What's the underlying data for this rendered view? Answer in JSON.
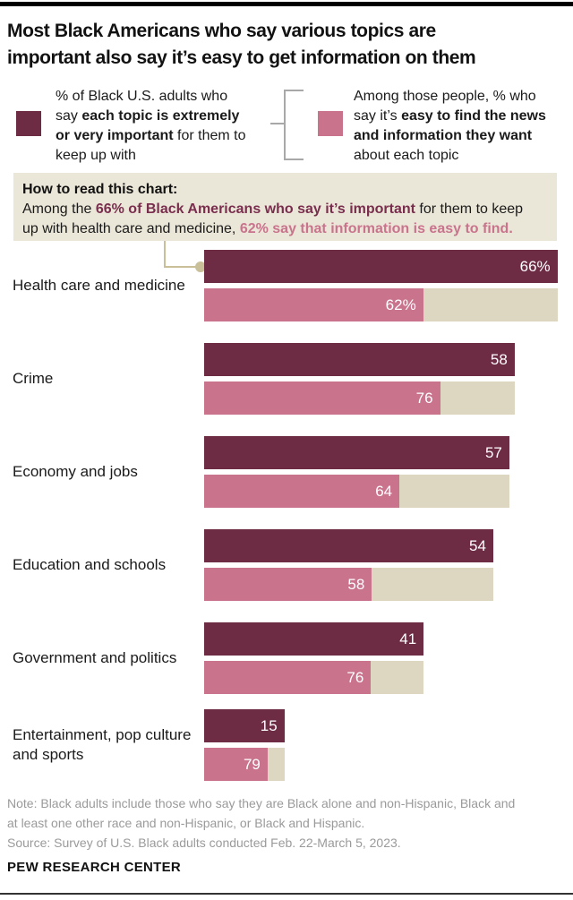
{
  "header": {
    "title_line1": "Most Black Americans who say various topics are",
    "title_line2": "important also say it’s easy to get information on them"
  },
  "legend": {
    "left": {
      "swatch": "maroon-square",
      "segments": [
        {
          "t": "% of Black U.S. adults who",
          "br": true
        },
        {
          "t": "say "
        },
        {
          "t": "each topic is extremely",
          "b": true,
          "br": true
        },
        {
          "t": "or very important",
          "b": true
        },
        {
          "t": " for them to",
          "br": true
        },
        {
          "t": "keep up with"
        }
      ]
    },
    "right": {
      "swatch": "pink-square",
      "segments": [
        {
          "t": "Among those people, % who",
          "br": true
        },
        {
          "t": "say it’s "
        },
        {
          "t": "easy to find the news",
          "b": true,
          "br": true
        },
        {
          "t": "and information they want",
          "b": true,
          "br": true
        },
        {
          "t": "about each topic"
        }
      ]
    }
  },
  "how_to_read": {
    "heading": "How to read this chart:",
    "segments": [
      {
        "t": "Among the "
      },
      {
        "t": "66% of Black Americans who say it’s important",
        "b": true,
        "c": "maroon_text"
      },
      {
        "t": " for them to keep",
        "br": true
      },
      {
        "t": "up with health care and medicine, "
      },
      {
        "t": "62% say that information is easy to find.",
        "b": true,
        "c": "pink_text"
      }
    ]
  },
  "chart_data": {
    "type": "bar",
    "orientation": "horizontal",
    "unit": "percent",
    "xlim": [
      0,
      100
    ],
    "grid": false,
    "legend_position": "top",
    "categories": [
      "Health care and medicine",
      "Crime",
      "Economy and jobs",
      "Education and schools",
      "Government and politics",
      "Entertainment, pop culture and sports"
    ],
    "series": [
      {
        "name": "% of Black U.S. adults who say each topic is extremely or very important for them to keep up with",
        "color_key": "maroon",
        "values": [
          66,
          58,
          57,
          54,
          41,
          15
        ],
        "labels": [
          "66%",
          "58",
          "57",
          "54",
          "41",
          "15"
        ]
      },
      {
        "name": "Among those people, % who say it’s easy to find the news and information they want about each topic",
        "color_key": "pink",
        "values": [
          62,
          76,
          64,
          58,
          76,
          79
        ],
        "labels": [
          "62%",
          "76",
          "64",
          "58",
          "76",
          "79"
        ],
        "note": "shown as filled share of a beige track equal in length to the importance bar"
      }
    ]
  },
  "footer": {
    "note_lines": [
      "Note: Black adults include those who say they are Black alone and non-Hispanic, Black and",
      "at least one other race and non-Hispanic, or Black and Hispanic."
    ],
    "source": "Source: Survey of U.S. Black adults conducted Feb. 22-March 5, 2023.",
    "brand": "PEW RESEARCH CENTER"
  },
  "colors": {
    "maroon": "#6e2b44",
    "maroon_text": "#7a2e4e",
    "pink": "#c9738d",
    "pink_text": "#c9738d",
    "track": "#ddd6c0",
    "box_bg": "#ebe7d8",
    "connector": "#c9c09a",
    "bracket": "#a8a8a8",
    "note_gray": "#9a9a9a",
    "rule_dark": "#333333"
  }
}
